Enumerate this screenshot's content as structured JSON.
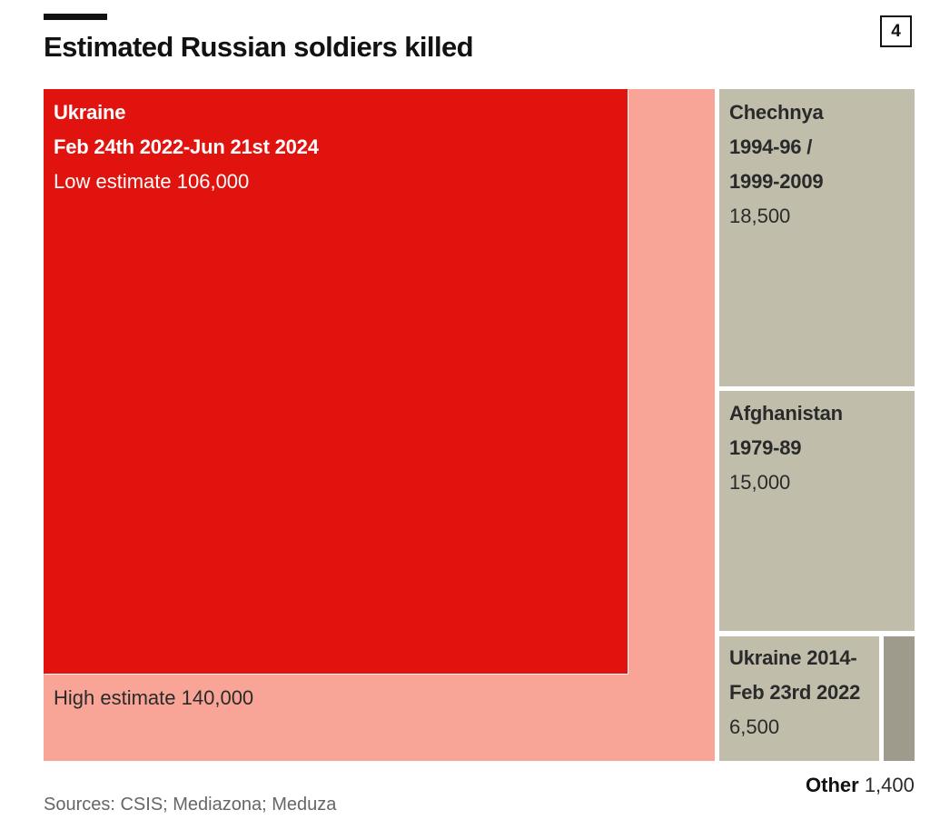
{
  "title": "Estimated Russian soldiers killed",
  "chart_number": "4",
  "sources": "Sources: CSIS; Mediazona; Meduza",
  "colors": {
    "ukraine_low": "#e0130f",
    "ukraine_high": "#f8a597",
    "other_conflicts": "#c0bdab",
    "other_small": "#9e9b8c"
  },
  "chart_data": {
    "type": "treemap",
    "title": "Estimated Russian soldiers killed",
    "items": [
      {
        "key": "ukraine_high",
        "label": "High estimate",
        "value_text": "140,000",
        "value": 140000
      },
      {
        "key": "ukraine_low",
        "name": "Ukraine",
        "period": "Feb 24th 2022-Jun 21st 2024",
        "label": "Low estimate",
        "value_text": "106,000",
        "value": 106000
      },
      {
        "key": "chechnya",
        "name_line1": "Chechnya",
        "name_line2": "1994-96 /",
        "name_line3": "1999-2009",
        "value_text": "18,500",
        "value": 18500
      },
      {
        "key": "afghanistan",
        "name_line1": "Afghanistan",
        "name_line2": "1979-89",
        "value_text": "15,000",
        "value": 15000
      },
      {
        "key": "ukraine_2014",
        "name_line1": "Ukraine 2014-",
        "name_line2": "Feb 23rd 2022",
        "value_text": "6,500",
        "value": 6500
      },
      {
        "key": "other",
        "name": "Other",
        "value_text": "1,400",
        "value": 1400
      }
    ]
  }
}
